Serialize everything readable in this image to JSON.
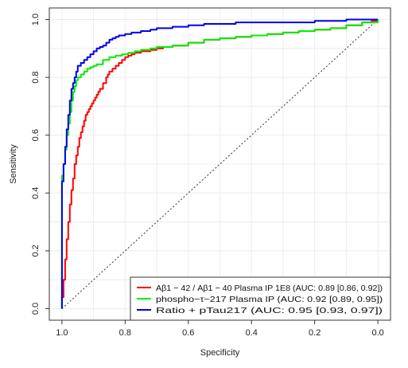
{
  "chart_data": {
    "type": "line",
    "title": "",
    "xlabel": "Specificity",
    "ylabel": "Sensitivity",
    "xlim": [
      1.04,
      -0.04
    ],
    "ylim": [
      -0.04,
      1.04
    ],
    "x_reversed": true,
    "xticks": [
      1.0,
      0.8,
      0.6,
      0.4,
      0.2,
      0.0
    ],
    "xtick_labels": [
      "1.0",
      "0.8",
      "0.6",
      "0.4",
      "0.2",
      "0.0"
    ],
    "yticks": [
      0.0,
      0.2,
      0.4,
      0.6,
      0.8,
      1.0
    ],
    "ytick_labels": [
      "0.0",
      "0.2",
      "0.4",
      "0.6",
      "0.8",
      "1.0"
    ],
    "grid": true,
    "legend_position": "bottom-right",
    "reference_line": {
      "style": "dotted",
      "color": "#333333",
      "from": [
        1.0,
        0.0
      ],
      "to": [
        0.0,
        1.0
      ]
    },
    "series": [
      {
        "name": "Aβ1 − 42 / Aβ1 − 40  Plasma IP 1E8  (AUC: 0.89 [0.86, 0.92])",
        "color": "#ff0000",
        "x": [
          1.0,
          1.0,
          0.995,
          0.99,
          0.985,
          0.98,
          0.975,
          0.97,
          0.965,
          0.96,
          0.955,
          0.95,
          0.945,
          0.94,
          0.935,
          0.93,
          0.925,
          0.92,
          0.915,
          0.91,
          0.905,
          0.9,
          0.895,
          0.89,
          0.885,
          0.88,
          0.87,
          0.86,
          0.855,
          0.85,
          0.84,
          0.83,
          0.82,
          0.81,
          0.8,
          0.79,
          0.78,
          0.77,
          0.75,
          0.72,
          0.7,
          0.68,
          0.65,
          0.6,
          0.55,
          0.5,
          0.45,
          0.4,
          0.35,
          0.3,
          0.25,
          0.2,
          0.15,
          0.1,
          0.05,
          0.02,
          0.0
        ],
        "y": [
          0.0,
          0.04,
          0.1,
          0.17,
          0.24,
          0.3,
          0.36,
          0.41,
          0.45,
          0.5,
          0.53,
          0.56,
          0.59,
          0.61,
          0.63,
          0.65,
          0.67,
          0.68,
          0.69,
          0.7,
          0.71,
          0.72,
          0.73,
          0.74,
          0.75,
          0.76,
          0.78,
          0.8,
          0.81,
          0.82,
          0.83,
          0.84,
          0.85,
          0.86,
          0.87,
          0.875,
          0.88,
          0.885,
          0.89,
          0.895,
          0.9,
          0.905,
          0.91,
          0.92,
          0.93,
          0.935,
          0.94,
          0.945,
          0.95,
          0.955,
          0.96,
          0.965,
          0.97,
          0.98,
          0.99,
          0.995,
          1.0
        ]
      },
      {
        "name": "phospho−τ−217  Plasma IP  (AUC: 0.92 [0.89, 0.95])",
        "color": "#00ee00",
        "x": [
          1.0,
          1.0,
          0.995,
          0.99,
          0.985,
          0.98,
          0.975,
          0.97,
          0.965,
          0.96,
          0.955,
          0.95,
          0.94,
          0.93,
          0.92,
          0.91,
          0.9,
          0.89,
          0.87,
          0.85,
          0.83,
          0.81,
          0.79,
          0.77,
          0.75,
          0.72,
          0.7,
          0.65,
          0.6,
          0.55,
          0.5,
          0.45,
          0.4,
          0.35,
          0.3,
          0.25,
          0.2,
          0.15,
          0.1,
          0.05,
          0.0
        ],
        "y": [
          0.0,
          0.46,
          0.5,
          0.55,
          0.6,
          0.64,
          0.68,
          0.72,
          0.75,
          0.77,
          0.79,
          0.8,
          0.81,
          0.82,
          0.83,
          0.835,
          0.84,
          0.845,
          0.86,
          0.87,
          0.875,
          0.88,
          0.885,
          0.89,
          0.895,
          0.9,
          0.905,
          0.91,
          0.92,
          0.93,
          0.935,
          0.94,
          0.945,
          0.95,
          0.955,
          0.96,
          0.965,
          0.97,
          0.98,
          0.99,
          1.0
        ]
      },
      {
        "name": "Ratio + pTau217 (AUC: 0.95 [0.93, 0.97])",
        "color": "#0000ee",
        "x": [
          1.0,
          1.0,
          0.995,
          0.99,
          0.985,
          0.98,
          0.975,
          0.97,
          0.965,
          0.96,
          0.955,
          0.95,
          0.94,
          0.93,
          0.92,
          0.91,
          0.9,
          0.89,
          0.88,
          0.87,
          0.86,
          0.85,
          0.84,
          0.83,
          0.82,
          0.8,
          0.78,
          0.75,
          0.72,
          0.7,
          0.65,
          0.6,
          0.55,
          0.5,
          0.45,
          0.4,
          0.35,
          0.3,
          0.25,
          0.2,
          0.15,
          0.1,
          0.05,
          0.0
        ],
        "y": [
          0.0,
          0.44,
          0.5,
          0.56,
          0.62,
          0.67,
          0.72,
          0.76,
          0.78,
          0.8,
          0.82,
          0.84,
          0.85,
          0.86,
          0.87,
          0.88,
          0.89,
          0.9,
          0.905,
          0.91,
          0.92,
          0.93,
          0.935,
          0.94,
          0.945,
          0.95,
          0.955,
          0.96,
          0.965,
          0.97,
          0.975,
          0.98,
          0.985,
          0.985,
          0.99,
          0.99,
          0.99,
          0.99,
          0.99,
          0.995,
          0.995,
          1.0,
          1.0,
          1.0
        ]
      }
    ]
  }
}
